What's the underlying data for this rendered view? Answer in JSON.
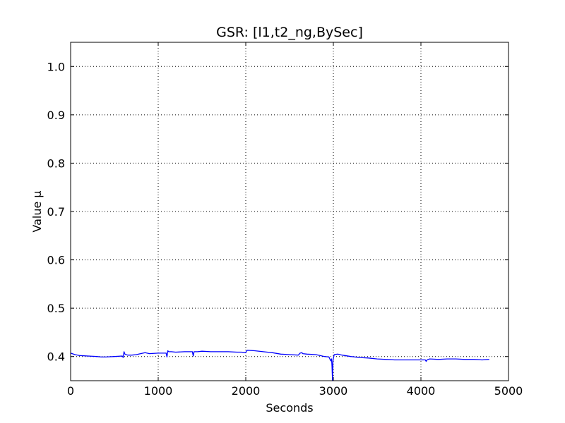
{
  "chart_data": {
    "type": "line",
    "title": "GSR: [l1,t2_ng,BySec]",
    "xlabel": "Seconds",
    "ylabel": "Value µ",
    "xlim": [
      0,
      5000
    ],
    "ylim": [
      0.35,
      1.05
    ],
    "xticks": [
      0,
      1000,
      2000,
      3000,
      4000,
      5000
    ],
    "xtick_labels": [
      "0",
      "1000",
      "2000",
      "3000",
      "4000",
      "5000"
    ],
    "yticks": [
      0.4,
      0.5,
      0.6,
      0.7,
      0.8,
      0.9,
      1.0
    ],
    "ytick_labels": [
      "0.4",
      "0.5",
      "0.6",
      "0.7",
      "0.8",
      "0.9",
      "1.0"
    ],
    "grid": true,
    "legend": "none",
    "series": [
      {
        "color": "#0000ff",
        "x": [
          0,
          50,
          100,
          200,
          300,
          350,
          400,
          500,
          590,
          600,
          610,
          620,
          650,
          700,
          750,
          800,
          850,
          900,
          1000,
          1090,
          1100,
          1110,
          1120,
          1150,
          1200,
          1300,
          1390,
          1400,
          1410,
          1450,
          1500,
          1600,
          1700,
          1800,
          1900,
          1950,
          2000,
          2010,
          2020,
          2100,
          2200,
          2300,
          2400,
          2500,
          2600,
          2620,
          2640,
          2650,
          2700,
          2800,
          2900,
          2950,
          2970,
          2980,
          2985,
          2990,
          2995,
          3000,
          3010,
          3050,
          3100,
          3200,
          3300,
          3400,
          3500,
          3600,
          3700,
          3800,
          3900,
          4000,
          4050,
          4060,
          4070,
          4100,
          4200,
          4300,
          4400,
          4500,
          4600,
          4700,
          4780
        ],
        "y": [
          0.407,
          0.404,
          0.402,
          0.401,
          0.4,
          0.399,
          0.399,
          0.4,
          0.401,
          0.398,
          0.41,
          0.405,
          0.403,
          0.403,
          0.404,
          0.406,
          0.408,
          0.406,
          0.407,
          0.407,
          0.399,
          0.412,
          0.41,
          0.41,
          0.409,
          0.41,
          0.41,
          0.401,
          0.41,
          0.41,
          0.411,
          0.41,
          0.41,
          0.41,
          0.409,
          0.409,
          0.408,
          0.412,
          0.413,
          0.412,
          0.41,
          0.408,
          0.405,
          0.404,
          0.403,
          0.407,
          0.408,
          0.406,
          0.405,
          0.404,
          0.4,
          0.399,
          0.391,
          0.395,
          0.38,
          0.35,
          0.39,
          0.396,
          0.404,
          0.405,
          0.403,
          0.4,
          0.398,
          0.397,
          0.395,
          0.394,
          0.393,
          0.393,
          0.393,
          0.393,
          0.393,
          0.39,
          0.393,
          0.395,
          0.394,
          0.395,
          0.395,
          0.394,
          0.394,
          0.393,
          0.394
        ]
      }
    ]
  }
}
